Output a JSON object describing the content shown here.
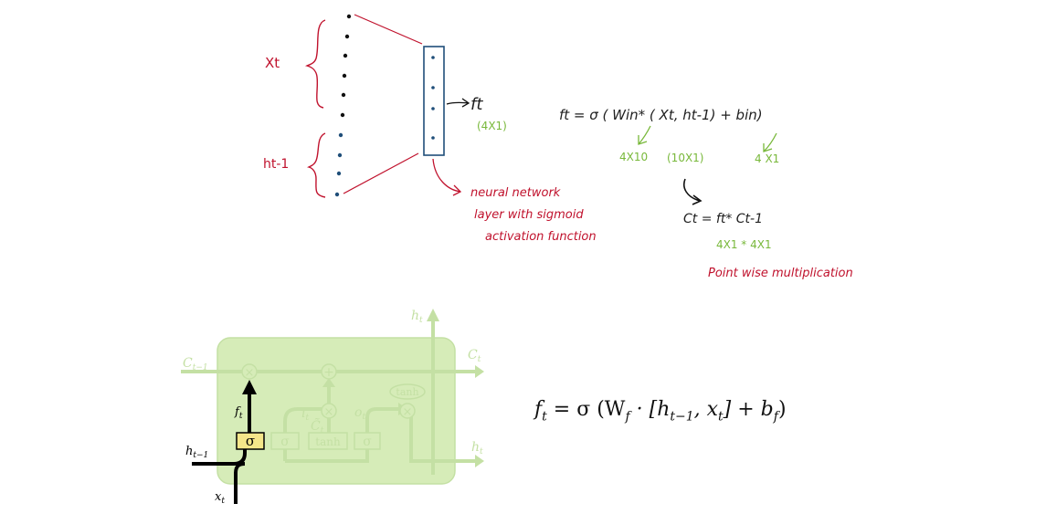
{
  "top_sketch": {
    "label_xt": "Xt",
    "label_ht1": "ht-1",
    "output_label": "ft",
    "output_dim": "(4X1)",
    "layer_note": [
      "neural network",
      "layer with sigmoid",
      "activation function"
    ],
    "equation": "ft = σ ( Win* ( Xt, ht-1) + bin)",
    "dims": {
      "w": "4X10",
      "x": "(10X1)",
      "b": "4 X1"
    },
    "ct_equation": "Ct = ft* Ct-1",
    "ct_dims": "4X1 * 4X1",
    "pointwise_note": "Point wise multiplication"
  },
  "lstm_diagram": {
    "cell_in": "C",
    "cell_in_sub": "t−1",
    "cell_out": "C",
    "cell_out_sub": "t",
    "h_top": "h",
    "h_top_sub": "t",
    "h_right": "h",
    "h_right_sub": "t",
    "h_in": "h",
    "h_in_sub": "t−1",
    "x_in": "x",
    "x_in_sub": "t",
    "f_label": "f",
    "f_sub": "t",
    "i_label": "i",
    "i_sub": "t",
    "o_label": "o",
    "o_sub": "t",
    "c_tilde": "C̃",
    "c_tilde_sub": "t",
    "sigma_active": "σ",
    "sigma_2": "σ",
    "tanh_box": "tanh",
    "sigma_3": "σ",
    "tanh_oval": "tanh",
    "times": "×",
    "plus": "+",
    "colors": {
      "cell_fill": "#d6ecb8",
      "faded": "#c4e0a4",
      "sigma_box": "#f5e68a"
    }
  },
  "formula": {
    "lhs": "f",
    "lhs_sub": "t",
    "eq": " = σ (W",
    "w_sub": "f",
    "mid": " · [h",
    "h_sub": "t−1",
    "comma": ", x",
    "x_sub": "t",
    "close": "]  +  b",
    "b_sub": "f",
    "end": ")"
  }
}
